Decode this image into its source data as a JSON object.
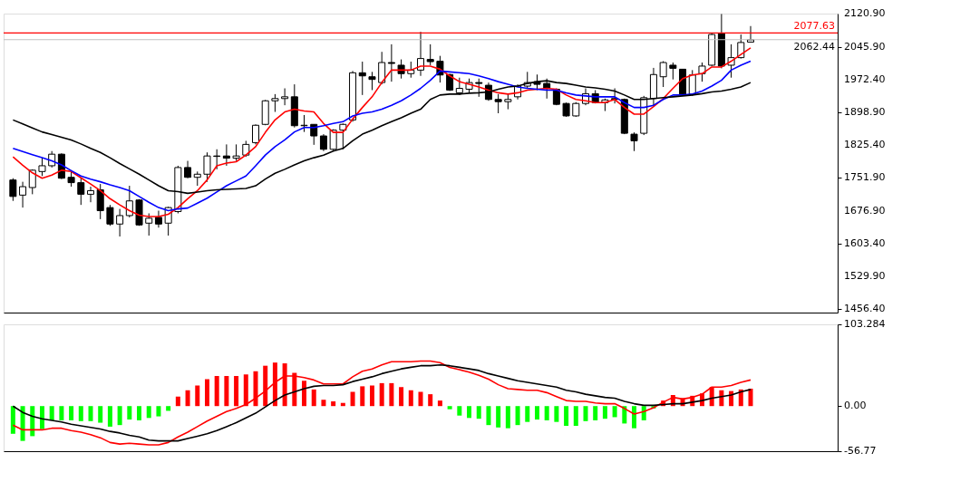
{
  "chart_data": [
    {
      "type": "candlestick",
      "categories": [
        null,
        null,
        null,
        null,
        null,
        null,
        null,
        null,
        null,
        null,
        null,
        null,
        null,
        null,
        null,
        null,
        null,
        null,
        null,
        null,
        null,
        null,
        null,
        null,
        null,
        null,
        null,
        null,
        null,
        null,
        null,
        null,
        null,
        null,
        null,
        null,
        null,
        null,
        null,
        null,
        null,
        null,
        null,
        null,
        null,
        null,
        null,
        null,
        null,
        null,
        null,
        null,
        null,
        null,
        null,
        null,
        null,
        null,
        null,
        null,
        null,
        null,
        null,
        null,
        null,
        null,
        null,
        null,
        null,
        null,
        null,
        null,
        null,
        null,
        null,
        null,
        null
      ],
      "ohlc": [
        [
          1747,
          1751,
          1700,
          1710
        ],
        [
          1713,
          1743,
          1685,
          1732
        ],
        [
          1730,
          1771,
          1715,
          1769
        ],
        [
          1766,
          1797,
          1756,
          1779
        ],
        [
          1779,
          1812,
          1775,
          1805
        ],
        [
          1805,
          1807,
          1749,
          1751
        ],
        [
          1753,
          1769,
          1732,
          1741
        ],
        [
          1741,
          1751,
          1691,
          1715
        ],
        [
          1715,
          1732,
          1697,
          1723
        ],
        [
          1725,
          1738,
          1659,
          1678
        ],
        [
          1685,
          1691,
          1644,
          1648
        ],
        [
          1648,
          1682,
          1620,
          1667
        ],
        [
          1667,
          1734,
          1663,
          1700
        ],
        [
          1702,
          1704,
          1644,
          1646
        ],
        [
          1650,
          1672,
          1622,
          1661
        ],
        [
          1663,
          1678,
          1640,
          1648
        ],
        [
          1650,
          1687,
          1622,
          1685
        ],
        [
          1676,
          1779,
          1672,
          1775
        ],
        [
          1775,
          1790,
          1751,
          1753
        ],
        [
          1753,
          1766,
          1734,
          1760
        ],
        [
          1760,
          1809,
          1743,
          1801
        ],
        [
          1801,
          1816,
          1771,
          1800
        ],
        [
          1801,
          1827,
          1779,
          1796
        ],
        [
          1796,
          1827,
          1790,
          1801
        ],
        [
          1803,
          1835,
          1799,
          1827
        ],
        [
          1831,
          1872,
          1827,
          1870
        ],
        [
          1872,
          1927,
          1870,
          1925
        ],
        [
          1925,
          1940,
          1900,
          1930
        ],
        [
          1930,
          1953,
          1915,
          1934
        ],
        [
          1934,
          1962,
          1865,
          1869
        ],
        [
          1869,
          1893,
          1855,
          1870
        ],
        [
          1872,
          1872,
          1826,
          1846
        ],
        [
          1846,
          1850,
          1812,
          1816
        ],
        [
          1816,
          1861,
          1814,
          1859
        ],
        [
          1859,
          1874,
          1816,
          1872
        ],
        [
          1882,
          1992,
          1878,
          1988
        ],
        [
          1988,
          2013,
          1938,
          1981
        ],
        [
          1979,
          1990,
          1949,
          1973
        ],
        [
          1966,
          2035,
          1962,
          2011
        ],
        [
          2011,
          2052,
          1968,
          2009
        ],
        [
          2005,
          2018,
          1975,
          1986
        ],
        [
          1986,
          2013,
          1977,
          1994
        ],
        [
          1994,
          2080,
          1981,
          2020
        ],
        [
          2018,
          2052,
          2005,
          2013
        ],
        [
          2014,
          2026,
          1966,
          1983
        ],
        [
          1984,
          1986,
          1947,
          1949
        ],
        [
          1943,
          1977,
          1938,
          1953
        ],
        [
          1951,
          1975,
          1943,
          1966
        ],
        [
          1966,
          1975,
          1934,
          1964
        ],
        [
          1960,
          1966,
          1925,
          1928
        ],
        [
          1928,
          1940,
          1897,
          1923
        ],
        [
          1923,
          1940,
          1906,
          1928
        ],
        [
          1934,
          1962,
          1928,
          1958
        ],
        [
          1958,
          1990,
          1953,
          1966
        ],
        [
          1968,
          1984,
          1949,
          1962
        ],
        [
          1964,
          1975,
          1930,
          1953
        ],
        [
          1951,
          1953,
          1915,
          1917
        ],
        [
          1919,
          1921,
          1889,
          1891
        ],
        [
          1891,
          1922,
          1889,
          1919
        ],
        [
          1919,
          1953,
          1915,
          1941
        ],
        [
          1941,
          1949,
          1919,
          1921
        ],
        [
          1921,
          1930,
          1902,
          1927
        ],
        [
          1930,
          1953,
          1919,
          1928
        ],
        [
          1928,
          1930,
          1850,
          1852
        ],
        [
          1850,
          1854,
          1812,
          1835
        ],
        [
          1852,
          1936,
          1848,
          1932
        ],
        [
          1930,
          1999,
          1915,
          1984
        ],
        [
          1979,
          2014,
          1956,
          2011
        ],
        [
          2005,
          2011,
          1973,
          1998
        ],
        [
          1996,
          1996,
          1938,
          1940
        ],
        [
          1940,
          1994,
          1936,
          1983
        ],
        [
          1986,
          2011,
          1968,
          2003
        ],
        [
          2005,
          2078,
          2003,
          2074
        ],
        [
          2076,
          2120,
          1998,
          2003
        ],
        [
          2005,
          2052,
          1977,
          2022
        ],
        [
          2022,
          2074,
          2020,
          2056
        ],
        [
          2057,
          2093,
          2056,
          2062
        ]
      ],
      "series": [
        {
          "type": "line",
          "color": "#ff0000",
          "values": [
            1799,
            1780,
            1763,
            1751,
            1758,
            1769,
            1766,
            1752,
            1738,
            1723,
            1705,
            1691,
            1678,
            1668,
            1665,
            1665,
            1670,
            1685,
            1705,
            1723,
            1747,
            1779,
            1785,
            1788,
            1803,
            1822,
            1854,
            1882,
            1900,
            1906,
            1902,
            1900,
            1874,
            1854,
            1854,
            1884,
            1910,
            1934,
            1966,
            1994,
            1994,
            1994,
            2003,
            2003,
            1996,
            1981,
            1968,
            1962,
            1956,
            1949,
            1943,
            1940,
            1943,
            1949,
            1951,
            1953,
            1951,
            1938,
            1928,
            1925,
            1921,
            1921,
            1928,
            1910,
            1895,
            1895,
            1912,
            1930,
            1953,
            1975,
            1983,
            1986,
            2001,
            2001,
            2014,
            2029,
            2044
          ]
        },
        {
          "type": "line",
          "color": "#0000ff",
          "values": [
            1818,
            1811,
            1804,
            1797,
            1790,
            1781,
            1768,
            1756,
            1749,
            1743,
            1736,
            1730,
            1723,
            1710,
            1697,
            1685,
            1678,
            1682,
            1684,
            1695,
            1706,
            1720,
            1734,
            1745,
            1756,
            1779,
            1803,
            1822,
            1837,
            1855,
            1865,
            1865,
            1869,
            1874,
            1878,
            1891,
            1897,
            1900,
            1906,
            1915,
            1925,
            1938,
            1953,
            1971,
            1992,
            1990,
            1988,
            1986,
            1981,
            1975,
            1968,
            1962,
            1956,
            1953,
            1951,
            1949,
            1949,
            1943,
            1938,
            1936,
            1934,
            1934,
            1934,
            1921,
            1910,
            1910,
            1915,
            1928,
            1938,
            1938,
            1940,
            1947,
            1958,
            1971,
            1994,
            2005,
            2014
          ]
        },
        {
          "type": "line",
          "color": "#000000",
          "values": [
            1882,
            1873,
            1864,
            1855,
            1849,
            1843,
            1837,
            1828,
            1818,
            1809,
            1797,
            1784,
            1772,
            1760,
            1747,
            1734,
            1723,
            1721,
            1717,
            1720,
            1723,
            1725,
            1726,
            1727,
            1728,
            1734,
            1749,
            1762,
            1771,
            1781,
            1790,
            1797,
            1803,
            1812,
            1818,
            1835,
            1850,
            1859,
            1869,
            1878,
            1887,
            1897,
            1906,
            1928,
            1938,
            1940,
            1940,
            1942,
            1943,
            1945,
            1951,
            1956,
            1958,
            1964,
            1968,
            1970,
            1966,
            1964,
            1960,
            1956,
            1954,
            1951,
            1947,
            1938,
            1928,
            1928,
            1930,
            1932,
            1934,
            1936,
            1938,
            1941,
            1945,
            1947,
            1951,
            1956,
            1966
          ]
        }
      ],
      "ylim": [
        1449,
        2121
      ],
      "yticks": [
        {
          "value": 1456.4,
          "label": "1456.40"
        },
        {
          "value": 1529.9,
          "label": "1529.90"
        },
        {
          "value": 1603.4,
          "label": "1603.40"
        },
        {
          "value": 1676.9,
          "label": "1676.90"
        },
        {
          "value": 1751.9,
          "label": "1751.90"
        },
        {
          "value": 1825.4,
          "label": "1825.40"
        },
        {
          "value": 1898.9,
          "label": "1898.90"
        },
        {
          "value": 1972.4,
          "label": "1972.40"
        },
        {
          "value": 2045.9,
          "label": "2045.90"
        },
        {
          "value": 2120.9,
          "label": "2120.90"
        }
      ],
      "ref_lines": [
        {
          "axis": "y",
          "value": 2077.63,
          "label": "2077.63",
          "color": "#ff0000"
        },
        {
          "axis": "y",
          "value": 2062.44,
          "label": "2062.44",
          "color": "#c0c0c0"
        }
      ],
      "grid": false,
      "tick_labels": "y"
    },
    {
      "type": "bar",
      "categories": [
        null,
        null,
        null,
        null,
        null,
        null,
        null,
        null,
        null,
        null,
        null,
        null,
        null,
        null,
        null,
        null,
        null,
        null,
        null,
        null,
        null,
        null,
        null,
        null,
        null,
        null,
        null,
        null,
        null,
        null,
        null,
        null,
        null,
        null,
        null,
        null,
        null,
        null,
        null,
        null,
        null,
        null,
        null,
        null,
        null,
        null,
        null,
        null,
        null,
        null,
        null,
        null,
        null,
        null,
        null,
        null,
        null,
        null,
        null,
        null,
        null,
        null,
        null,
        null,
        null,
        null,
        null,
        null,
        null,
        null,
        null,
        null,
        null,
        null,
        null,
        null,
        null
      ],
      "series": [
        {
          "type": "bar",
          "colors": [
            "#00ff00",
            "#00ff00",
            "#00ff00",
            "#00ff00",
            "#00ff00",
            "#00ff00",
            "#00ff00",
            "#00ff00",
            "#00ff00",
            "#00ff00",
            "#00ff00",
            "#00ff00",
            "#00ff00",
            "#00ff00",
            "#00ff00",
            "#00ff00",
            "#00ff00",
            "#ff0000",
            "#ff0000",
            "#ff0000",
            "#ff0000",
            "#ff0000",
            "#ff0000",
            "#ff0000",
            "#ff0000",
            "#ff0000",
            "#ff0000",
            "#ff0000",
            "#ff0000",
            "#ff0000",
            "#ff0000",
            "#ff0000",
            "#ff0000",
            "#ff0000",
            "#ff0000",
            "#ff0000",
            "#ff0000",
            "#ff0000",
            "#ff0000",
            "#ff0000",
            "#ff0000",
            "#ff0000",
            "#ff0000",
            "#ff0000",
            "#ff0000",
            "#00ff00",
            "#00ff00",
            "#00ff00",
            "#00ff00",
            "#00ff00",
            "#00ff00",
            "#00ff00",
            "#00ff00",
            "#00ff00",
            "#00ff00",
            "#00ff00",
            "#00ff00",
            "#00ff00",
            "#00ff00",
            "#00ff00",
            "#00ff00",
            "#00ff00",
            "#00ff00",
            "#00ff00",
            "#00ff00",
            "#00ff00",
            "#00ff00",
            "#ff0000",
            "#ff0000",
            "#ff0000",
            "#ff0000",
            "#ff0000",
            "#ff0000",
            "#ff0000",
            "#ff0000",
            "#ff0000",
            "#ff0000"
          ],
          "values": [
            -35,
            -44,
            -38,
            -29,
            -18,
            -18,
            -18,
            -19,
            -19,
            -21,
            -26,
            -24,
            -17,
            -18,
            -15,
            -13,
            -6,
            12,
            20,
            26,
            34,
            38,
            38,
            38,
            40,
            44,
            51,
            55,
            54,
            42,
            32,
            21,
            8,
            6,
            4,
            18,
            25,
            26,
            29,
            29,
            24,
            20,
            18,
            15,
            7,
            -4,
            -12,
            -15,
            -16,
            -24,
            -27,
            -28,
            -24,
            -20,
            -17,
            -18,
            -20,
            -25,
            -25,
            -19,
            -18,
            -16,
            -14,
            -22,
            -28,
            -18,
            -3,
            7,
            14,
            10,
            13,
            16,
            24,
            20,
            19,
            21,
            22
          ]
        },
        {
          "type": "line",
          "color": "#ff0000",
          "values": [
            -24,
            -30,
            -30,
            -30,
            -28,
            -28,
            -31,
            -33,
            -36,
            -40,
            -46,
            -48,
            -47,
            -48,
            -49,
            -49,
            -46,
            -39,
            -33,
            -26,
            -19,
            -13,
            -7,
            -3,
            2,
            10,
            19,
            30,
            38,
            38,
            36,
            33,
            28,
            28,
            28,
            37,
            44,
            47,
            52,
            56,
            56,
            56,
            57,
            57,
            55,
            49,
            46,
            43,
            39,
            34,
            27,
            22,
            21,
            20,
            20,
            17,
            12,
            7,
            6,
            6,
            4,
            3,
            3,
            -3,
            -10,
            -7,
            -2,
            5,
            11,
            9,
            11,
            15,
            24,
            24,
            26,
            30,
            33
          ]
        },
        {
          "type": "line",
          "color": "#000000",
          "values": [
            0,
            -8,
            -13,
            -16,
            -18,
            -20,
            -23,
            -25,
            -27,
            -29,
            -32,
            -34,
            -37,
            -39,
            -43,
            -44,
            -44,
            -44,
            -41,
            -38,
            -35,
            -31,
            -26,
            -21,
            -15,
            -9,
            -1,
            7,
            14,
            18,
            22,
            25,
            26,
            26,
            27,
            31,
            34,
            37,
            41,
            44,
            47,
            49,
            51,
            51,
            52,
            51,
            49,
            47,
            45,
            41,
            38,
            35,
            32,
            30,
            28,
            26,
            24,
            20,
            18,
            15,
            13,
            11,
            10,
            6,
            3,
            1,
            1,
            2,
            3,
            3,
            5,
            7,
            10,
            12,
            14,
            18,
            21
          ]
        }
      ],
      "ylim": [
        -57,
        103.284
      ],
      "yticks": [
        {
          "value": 103.284,
          "label": "103.284"
        },
        {
          "value": 0,
          "label": "0.00"
        },
        {
          "value": -56.77,
          "label": "-56.77"
        }
      ],
      "grid": false,
      "tick_labels": "y"
    }
  ]
}
